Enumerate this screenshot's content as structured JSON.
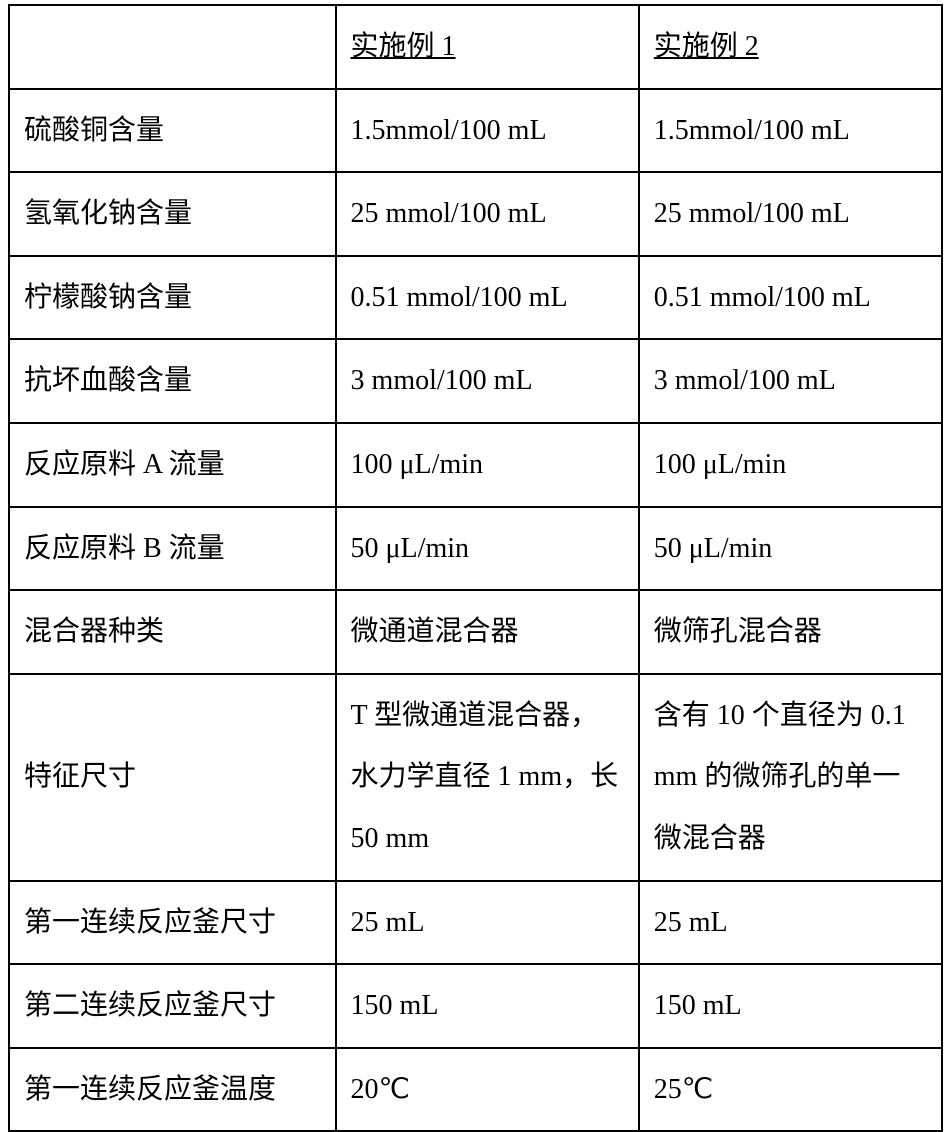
{
  "table": {
    "header": {
      "c0": "",
      "c1": "实施例 1",
      "c2": "实施例 2"
    },
    "rows": [
      {
        "label": "硫酸铜含量",
        "c1": "1.5mmol/100 mL",
        "c2": "1.5mmol/100 mL"
      },
      {
        "label": "氢氧化钠含量",
        "c1": "25 mmol/100 mL",
        "c2": "25 mmol/100 mL"
      },
      {
        "label": "柠檬酸钠含量",
        "c1": "0.51 mmol/100 mL",
        "c2": "0.51 mmol/100 mL"
      },
      {
        "label": "抗坏血酸含量",
        "c1": "3 mmol/100 mL",
        "c2": "3 mmol/100 mL"
      },
      {
        "label": "反应原料 A 流量",
        "c1": "100 μL/min",
        "c2": "100 μL/min"
      },
      {
        "label": "反应原料 B 流量",
        "c1": "50 μL/min",
        "c2": "50 μL/min"
      },
      {
        "label": "混合器种类",
        "c1": "微通道混合器",
        "c2": "微筛孔混合器"
      },
      {
        "label": "特征尺寸",
        "c1": "T 型微通道混合器，水力学直径 1 mm，长 50 mm",
        "c2": "含有 10 个直径为 0.1 mm 的微筛孔的单一微混合器"
      },
      {
        "label": "第一连续反应釜尺寸",
        "c1": "25 mL",
        "c2": "25 mL"
      },
      {
        "label": "第二连续反应釜尺寸",
        "c1": "150 mL",
        "c2": "150 mL"
      },
      {
        "label": "第一连续反应釜温度",
        "c1": "20℃",
        "c2": "25℃"
      }
    ]
  }
}
